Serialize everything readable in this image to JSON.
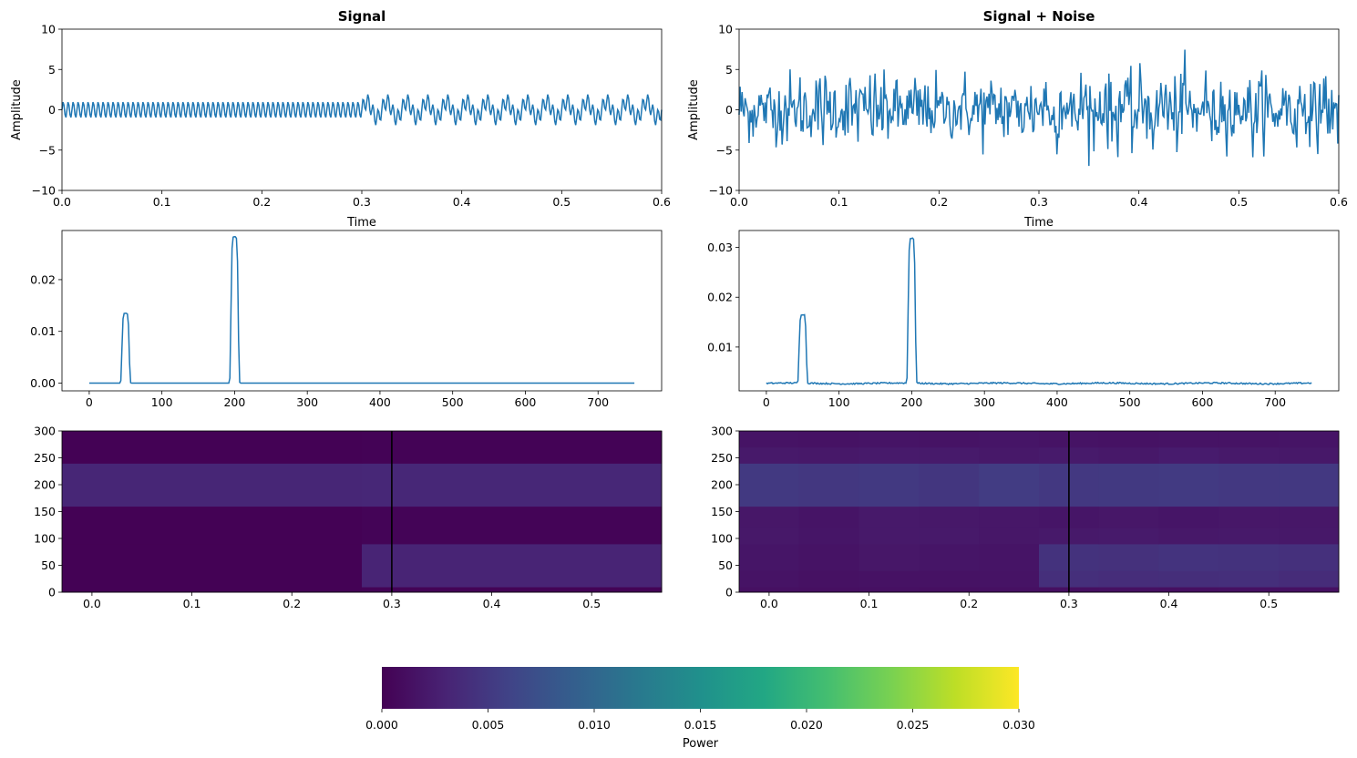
{
  "chart_data": [
    {
      "type": "line",
      "title": "Signal",
      "xlabel": "Time",
      "ylabel": "Amplitude",
      "xlim": [
        0,
        0.6
      ],
      "ylim": [
        -10,
        10
      ],
      "xticks": [
        "0.0",
        "0.1",
        "0.2",
        "0.3",
        "0.4",
        "0.5",
        "0.6"
      ],
      "yticks": [
        "−10",
        "−5",
        "0",
        "5",
        "10"
      ],
      "series": [
        {
          "color": "#1f77b4",
          "description": "1 kHz sample rate; t<0.3: sin(2π·200t); t≥0.3: sin(2π·200t)+sin(2π·50t)",
          "segments": [
            {
              "t_start": 0.0,
              "t_end": 0.3,
              "components": [
                {
                  "freq_hz": 200,
                  "amp": 1
                }
              ]
            },
            {
              "t_start": 0.3,
              "t_end": 0.6,
              "components": [
                {
                  "freq_hz": 200,
                  "amp": 1
                },
                {
                  "freq_hz": 50,
                  "amp": 1
                }
              ]
            }
          ],
          "sample_rate_hz": 1000
        }
      ]
    },
    {
      "type": "line",
      "title": "Signal + Noise",
      "xlabel": "Time",
      "ylabel": "Amplitude",
      "xlim": [
        0,
        0.6
      ],
      "ylim": [
        -10,
        10
      ],
      "xticks": [
        "0.0",
        "0.1",
        "0.2",
        "0.3",
        "0.4",
        "0.5",
        "0.6"
      ],
      "yticks": [
        "−10",
        "−5",
        "0",
        "5",
        "10"
      ],
      "series": [
        {
          "color": "#1f77b4",
          "description": "same signal plus gaussian noise (std ≈ 2)",
          "noise_std": 2,
          "sample_rate_hz": 1000
        }
      ]
    },
    {
      "type": "line",
      "xlim": [
        -37.5,
        787.5
      ],
      "ylim": [
        -0.0015,
        0.0295
      ],
      "xticks": [
        "0",
        "100",
        "200",
        "300",
        "400",
        "500",
        "600",
        "700"
      ],
      "xtick_values": [
        0,
        100,
        200,
        300,
        400,
        500,
        600,
        700
      ],
      "yticks": [
        "0.00",
        "0.01",
        "0.02"
      ],
      "ytick_values": [
        0,
        0.01,
        0.02
      ],
      "series": [
        {
          "color": "#1f77b4",
          "baseline": 0.0,
          "peaks": [
            {
              "center": 50,
              "height": 0.0135,
              "half_width": 5
            },
            {
              "center": 200,
              "height": 0.0283,
              "half_width": 5
            }
          ],
          "x_range": [
            0,
            750
          ]
        }
      ]
    },
    {
      "type": "line",
      "xlim": [
        -37.5,
        787.5
      ],
      "ylim": [
        0.0012,
        0.0334
      ],
      "xticks": [
        "0",
        "100",
        "200",
        "300",
        "400",
        "500",
        "600",
        "700"
      ],
      "xtick_values": [
        0,
        100,
        200,
        300,
        400,
        500,
        600,
        700
      ],
      "yticks": [
        "0.01",
        "0.02",
        "0.03"
      ],
      "ytick_values": [
        0.01,
        0.02,
        0.03
      ],
      "series": [
        {
          "color": "#1f77b4",
          "baseline": 0.0027,
          "baseline_jitter": 0.0002,
          "peaks": [
            {
              "center": 50,
              "height": 0.0165,
              "half_width": 5
            },
            {
              "center": 200,
              "height": 0.0318,
              "half_width": 5
            }
          ],
          "x_range": [
            0,
            750
          ]
        }
      ]
    },
    {
      "type": "heatmap",
      "xlim": [
        -0.03,
        0.57
      ],
      "ylim": [
        0,
        300
      ],
      "xticks": [
        "0.0",
        "0.1",
        "0.2",
        "0.3",
        "0.4",
        "0.5"
      ],
      "xtick_values": [
        0,
        0.1,
        0.2,
        0.3,
        0.4,
        0.5
      ],
      "yticks": [
        "0",
        "50",
        "100",
        "150",
        "200",
        "250",
        "300"
      ],
      "ytick_values": [
        0,
        50,
        100,
        150,
        200,
        250,
        300
      ],
      "vline_x": 0.3,
      "vline_color": "#000000",
      "colormap": "viridis",
      "vmin": 0.0,
      "vmax": 0.03,
      "x_edges": [
        -0.03,
        0.27,
        0.57
      ],
      "y_edges": [
        0,
        10,
        90,
        160,
        240,
        300
      ],
      "z": [
        [
          0.0001,
          0.0002
        ],
        [
          0.0001,
          0.0031
        ],
        [
          0.0001,
          0.0003
        ],
        [
          0.0033,
          0.0034
        ],
        [
          0.0001,
          0.0002
        ]
      ]
    },
    {
      "type": "heatmap",
      "xlim": [
        -0.03,
        0.57
      ],
      "ylim": [
        0,
        300
      ],
      "xticks": [
        "0.0",
        "0.1",
        "0.2",
        "0.3",
        "0.4",
        "0.5"
      ],
      "xtick_values": [
        0,
        0.1,
        0.2,
        0.3,
        0.4,
        0.5
      ],
      "yticks": [
        "0",
        "50",
        "100",
        "150",
        "200",
        "250",
        "300"
      ],
      "ytick_values": [
        0,
        50,
        100,
        150,
        200,
        250,
        300
      ],
      "vline_x": 0.3,
      "vline_color": "#000000",
      "colormap": "viridis",
      "vmin": 0.0,
      "vmax": 0.03,
      "x_edges": [
        -0.03,
        0.03,
        0.09,
        0.15,
        0.21,
        0.27,
        0.33,
        0.39,
        0.45,
        0.51,
        0.57
      ],
      "y_edges": [
        0,
        10,
        40,
        90,
        120,
        160,
        240,
        270,
        300
      ],
      "z": [
        [
          0.0013,
          0.0012,
          0.0013,
          0.0012,
          0.0013,
          0.0012,
          0.0013,
          0.0012,
          0.0013,
          0.0013
        ],
        [
          0.0016,
          0.0014,
          0.0015,
          0.0015,
          0.0016,
          0.0041,
          0.0039,
          0.004,
          0.0041,
          0.0038
        ],
        [
          0.0018,
          0.0016,
          0.0019,
          0.0018,
          0.0017,
          0.0044,
          0.0043,
          0.0045,
          0.0044,
          0.0042
        ],
        [
          0.002,
          0.0018,
          0.0021,
          0.0021,
          0.0019,
          0.0021,
          0.0022,
          0.002,
          0.0021,
          0.002
        ],
        [
          0.0019,
          0.0017,
          0.0021,
          0.002,
          0.0019,
          0.0018,
          0.0019,
          0.0018,
          0.0019,
          0.0019
        ],
        [
          0.0051,
          0.0049,
          0.0051,
          0.0048,
          0.0053,
          0.005,
          0.0051,
          0.0052,
          0.005,
          0.005
        ],
        [
          0.0021,
          0.002,
          0.0022,
          0.0022,
          0.002,
          0.0022,
          0.002,
          0.0023,
          0.0021,
          0.002
        ],
        [
          0.0016,
          0.0015,
          0.0017,
          0.0016,
          0.0018,
          0.0016,
          0.0015,
          0.0016,
          0.0016,
          0.0017
        ]
      ]
    }
  ],
  "colorbar": {
    "label": "Power",
    "vmin": 0.0,
    "vmax": 0.03,
    "ticks": [
      "0.000",
      "0.005",
      "0.010",
      "0.015",
      "0.020",
      "0.025",
      "0.030"
    ],
    "tick_values": [
      0,
      0.005,
      0.01,
      0.015,
      0.02,
      0.025,
      0.03
    ],
    "colormap": "viridis"
  }
}
